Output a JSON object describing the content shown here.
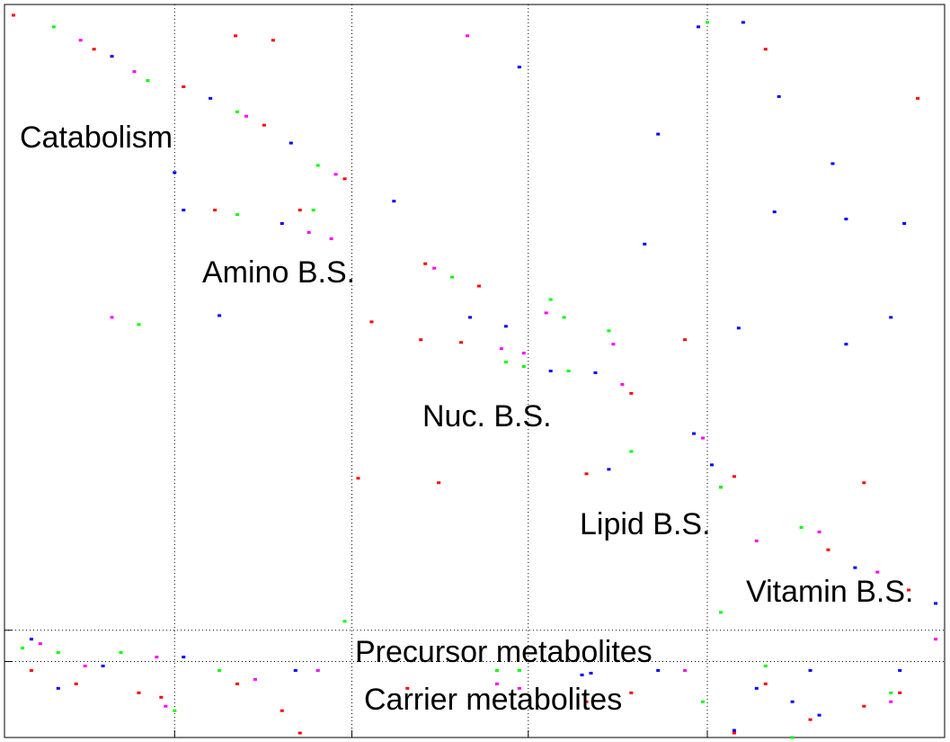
{
  "chart_data": {
    "type": "scatter",
    "xlim": [
      0,
      1050
    ],
    "ylim": [
      820,
      0
    ],
    "xticks": [
      190,
      388,
      585,
      785
    ],
    "yticks": [
      700,
      735
    ],
    "grid": true,
    "grid_style": "dotted",
    "annotations": [
      "Catabolism",
      "Amino B.S.",
      "Nuc. B.S.",
      "Lipid B.S.",
      "Vitamin B.S.",
      "Precursor metabolites",
      "Carrier metabolites"
    ],
    "series": [
      {
        "color": "#ff0000",
        "points": [
          [
            10,
            12
          ],
          [
            100,
            50
          ],
          [
            200,
            92
          ],
          [
            290,
            135
          ],
          [
            380,
            195
          ],
          [
            470,
            290
          ],
          [
            530,
            315
          ],
          [
            700,
            435
          ],
          [
            800,
            540
          ],
          [
            920,
            610
          ],
          [
            1010,
            655
          ],
          [
            258,
            35
          ],
          [
            300,
            40
          ],
          [
            850,
            50
          ],
          [
            1020,
            105
          ],
          [
            235,
            230
          ],
          [
            330,
            230
          ],
          [
            410,
            355
          ],
          [
            465,
            375
          ],
          [
            510,
            378
          ],
          [
            760,
            375
          ],
          [
            650,
            525
          ],
          [
            815,
            528
          ],
          [
            395,
            530
          ],
          [
            485,
            535
          ],
          [
            960,
            535
          ],
          [
            30,
            745
          ],
          [
            80,
            760
          ],
          [
            150,
            770
          ],
          [
            175,
            775
          ],
          [
            260,
            760
          ],
          [
            310,
            790
          ],
          [
            450,
            765
          ],
          [
            650,
            780
          ],
          [
            700,
            770
          ],
          [
            850,
            760
          ],
          [
            900,
            800
          ],
          [
            960,
            785
          ],
          [
            1000,
            770
          ],
          [
            815,
            815
          ],
          [
            330,
            815
          ]
        ]
      },
      {
        "color": "#00ff00",
        "points": [
          [
            55,
            25
          ],
          [
            160,
            85
          ],
          [
            260,
            120
          ],
          [
            350,
            180
          ],
          [
            500,
            305
          ],
          [
            630,
            410
          ],
          [
            800,
            540
          ],
          [
            890,
            585
          ],
          [
            785,
            20
          ],
          [
            150,
            358
          ],
          [
            260,
            235
          ],
          [
            345,
            230
          ],
          [
            610,
            330
          ],
          [
            625,
            350
          ],
          [
            675,
            365
          ],
          [
            560,
            400
          ],
          [
            580,
            405
          ],
          [
            700,
            500
          ],
          [
            800,
            680
          ],
          [
            380,
            690
          ],
          [
            20,
            720
          ],
          [
            60,
            725
          ],
          [
            130,
            725
          ],
          [
            240,
            745
          ],
          [
            350,
            745
          ],
          [
            550,
            745
          ],
          [
            575,
            745
          ],
          [
            780,
            780
          ],
          [
            850,
            740
          ],
          [
            990,
            770
          ],
          [
            190,
            790
          ],
          [
            880,
            820
          ]
        ]
      },
      {
        "color": "#0000ff",
        "points": [
          [
            120,
            58
          ],
          [
            230,
            105
          ],
          [
            320,
            155
          ],
          [
            435,
            220
          ],
          [
            610,
            410
          ],
          [
            660,
            412
          ],
          [
            770,
            480
          ],
          [
            790,
            515
          ],
          [
            950,
            630
          ],
          [
            1040,
            670
          ],
          [
            775,
            25
          ],
          [
            575,
            70
          ],
          [
            825,
            20
          ],
          [
            865,
            103
          ],
          [
            730,
            145
          ],
          [
            925,
            178
          ],
          [
            190,
            188
          ],
          [
            200,
            230
          ],
          [
            310,
            245
          ],
          [
            715,
            268
          ],
          [
            1005,
            245
          ],
          [
            940,
            240
          ],
          [
            860,
            232
          ],
          [
            240,
            348
          ],
          [
            520,
            350
          ],
          [
            560,
            360
          ],
          [
            820,
            362
          ],
          [
            990,
            350
          ],
          [
            940,
            380
          ],
          [
            675,
            520
          ],
          [
            30,
            710
          ],
          [
            110,
            740
          ],
          [
            200,
            730
          ],
          [
            325,
            745
          ],
          [
            645,
            750
          ],
          [
            655,
            748
          ],
          [
            730,
            745
          ],
          [
            900,
            745
          ],
          [
            1000,
            745
          ],
          [
            60,
            765
          ],
          [
            880,
            780
          ],
          [
            910,
            795
          ],
          [
            840,
            765
          ],
          [
            815,
            812
          ]
        ]
      },
      {
        "color": "#ff00ff",
        "points": [
          [
            85,
            40
          ],
          [
            145,
            75
          ],
          [
            270,
            125
          ],
          [
            370,
            190
          ],
          [
            480,
            295
          ],
          [
            690,
            425
          ],
          [
            780,
            485
          ],
          [
            840,
            600
          ],
          [
            910,
            590
          ],
          [
            975,
            635
          ],
          [
            517,
            35
          ],
          [
            340,
            255
          ],
          [
            365,
            262
          ],
          [
            580,
            390
          ],
          [
            555,
            385
          ],
          [
            605,
            345
          ],
          [
            120,
            350
          ],
          [
            680,
            380
          ],
          [
            40,
            715
          ],
          [
            90,
            740
          ],
          [
            170,
            730
          ],
          [
            280,
            755
          ],
          [
            350,
            745
          ],
          [
            550,
            760
          ],
          [
            575,
            765
          ],
          [
            760,
            745
          ],
          [
            990,
            780
          ],
          [
            1040,
            710
          ],
          [
            180,
            785
          ]
        ]
      }
    ]
  }
}
